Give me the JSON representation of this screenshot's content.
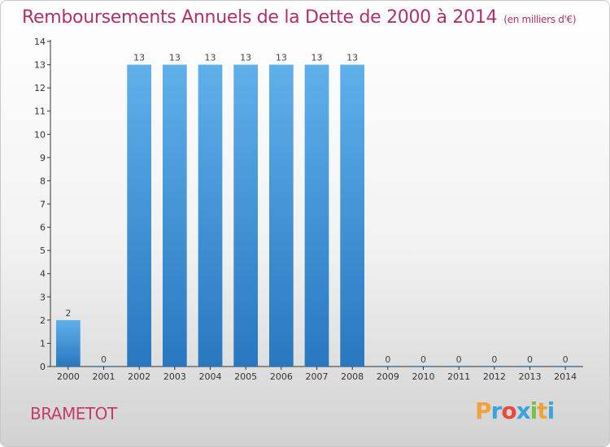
{
  "header": {
    "title": "Remboursements Annuels de la Dette de 2000 à 2014",
    "subtitle": "(en milliers d'€)"
  },
  "footer": {
    "commune": "BRAMETOT",
    "logo_letters": [
      "P",
      "r",
      "o",
      "x",
      "i",
      "t",
      "i"
    ],
    "logo_colors": [
      "#f0a23c",
      "#3aa4dc",
      "#e84a3c",
      "#3aa4dc",
      "#7cc04a",
      "#f0a23c",
      "#3aa4dc"
    ]
  },
  "chart_data": {
    "type": "bar",
    "title": "Remboursements Annuels de la Dette de 2000 à 2014",
    "xlabel": "",
    "ylabel": "",
    "ylim": [
      0,
      14
    ],
    "yticks": [
      0,
      1,
      2,
      3,
      4,
      5,
      6,
      7,
      8,
      9,
      10,
      11,
      12,
      13,
      14
    ],
    "categories": [
      "2000",
      "2001",
      "2002",
      "2003",
      "2004",
      "2005",
      "2006",
      "2007",
      "2008",
      "2009",
      "2010",
      "2011",
      "2012",
      "2013",
      "2014"
    ],
    "values": [
      2,
      0,
      13,
      13,
      13,
      13,
      13,
      13,
      13,
      0,
      0,
      0,
      0,
      0,
      0
    ],
    "bar_color": "#3e95d8",
    "grid": false,
    "legend": "none"
  }
}
